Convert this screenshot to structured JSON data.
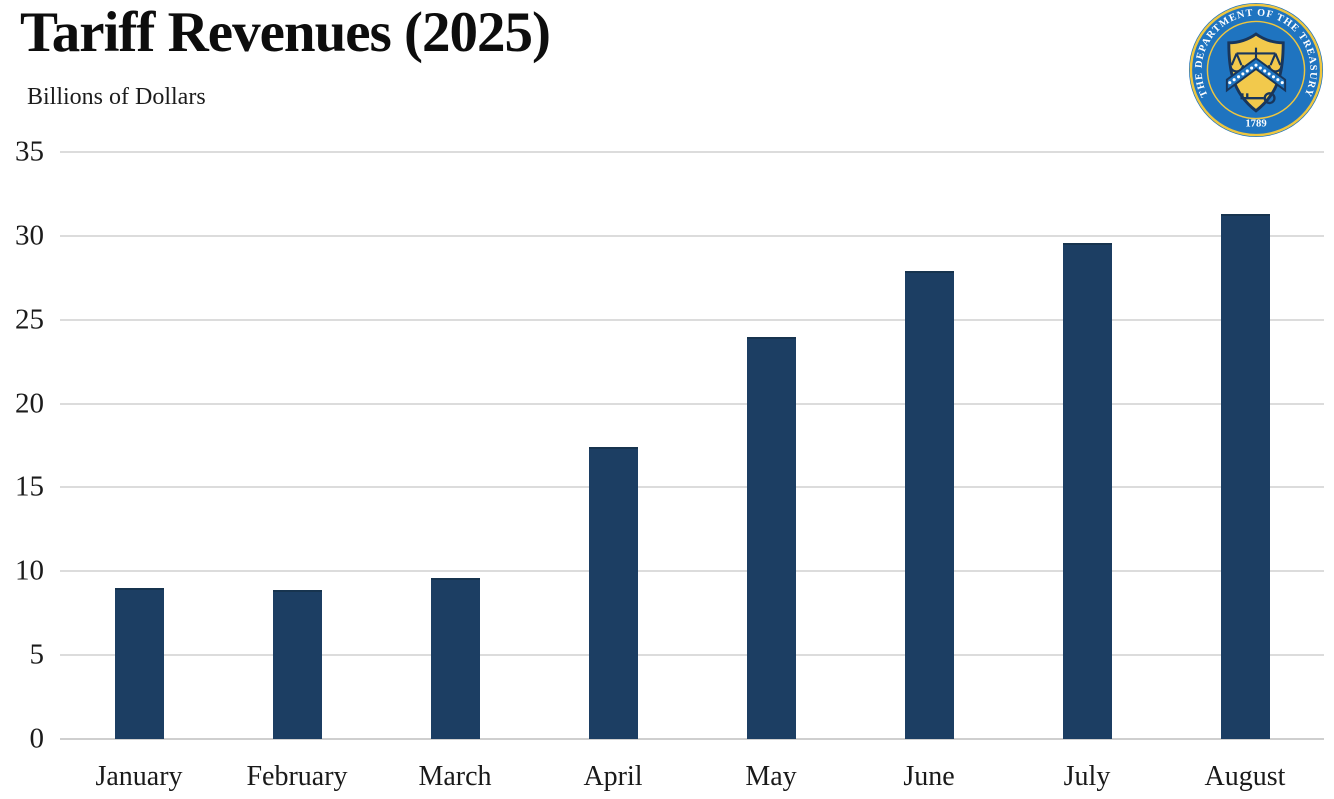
{
  "page": {
    "title": "Tariff Revenues (2025)",
    "subtitle": "Billions of Dollars"
  },
  "seal": {
    "ring_text": "THE DEPARTMENT OF THE TREASURY",
    "year": "1789",
    "field_color": "#1f74c0",
    "gold_color": "#eec63f",
    "emblem_color": "#18365c"
  },
  "chart_data": {
    "type": "bar",
    "title": "Tariff Revenues (2025)",
    "ylabel": "Billions of Dollars",
    "xlabel": "",
    "categories": [
      "January",
      "February",
      "March",
      "April",
      "May",
      "June",
      "July",
      "August"
    ],
    "values": [
      9.0,
      8.9,
      9.6,
      17.4,
      24.0,
      27.9,
      29.6,
      31.3
    ],
    "ylim": [
      0,
      35
    ],
    "yticks": [
      0,
      5,
      10,
      15,
      20,
      25,
      30,
      35
    ],
    "grid": "horizontal",
    "legend": "none",
    "bar_color": "#1c3e63",
    "gridline_color": "#dcdcdc",
    "baseline_color": "#cfcfcf"
  }
}
